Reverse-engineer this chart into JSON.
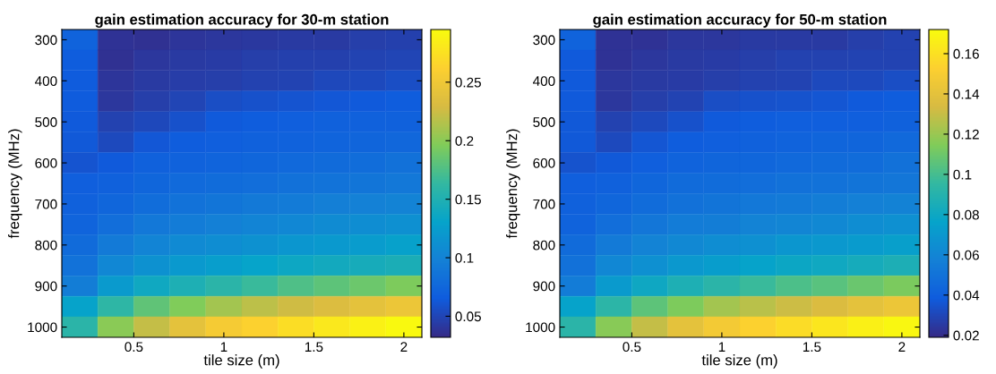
{
  "chart_data": [
    {
      "type": "heatmap",
      "title": "gain estimation accuracy for 30-m station",
      "xlabel": "tile size (m)",
      "ylabel": "frequency (MHz)",
      "x": [
        0.2,
        0.4,
        0.6,
        0.8,
        1.0,
        1.2,
        1.4,
        1.6,
        1.8,
        2.0
      ],
      "y": [
        300,
        350,
        400,
        450,
        500,
        550,
        600,
        650,
        700,
        750,
        800,
        850,
        900,
        950,
        1000
      ],
      "xlim": [
        0.1,
        2.1
      ],
      "ylim": [
        1025,
        275
      ],
      "xticks": [
        0.5,
        1,
        1.5,
        2
      ],
      "yticks": [
        300,
        400,
        500,
        600,
        700,
        800,
        900,
        1000
      ],
      "clim": [
        0.032,
        0.295
      ],
      "cticks": [
        0.05,
        0.1,
        0.15,
        0.2,
        0.25
      ],
      "cells": [
        [
          0.072,
          0.038,
          0.037,
          0.04,
          0.041,
          0.042,
          0.043,
          0.043,
          0.046,
          0.047
        ],
        [
          0.066,
          0.037,
          0.041,
          0.043,
          0.044,
          0.046,
          0.047,
          0.047,
          0.049,
          0.05
        ],
        [
          0.065,
          0.04,
          0.043,
          0.045,
          0.046,
          0.048,
          0.049,
          0.052,
          0.053,
          0.056
        ],
        [
          0.065,
          0.041,
          0.046,
          0.05,
          0.056,
          0.058,
          0.06,
          0.062,
          0.064,
          0.066
        ],
        [
          0.064,
          0.048,
          0.052,
          0.058,
          0.064,
          0.066,
          0.068,
          0.069,
          0.069,
          0.07
        ],
        [
          0.063,
          0.053,
          0.062,
          0.066,
          0.068,
          0.07,
          0.071,
          0.073,
          0.074,
          0.076
        ],
        [
          0.06,
          0.064,
          0.069,
          0.071,
          0.073,
          0.075,
          0.077,
          0.079,
          0.081,
          0.084
        ],
        [
          0.068,
          0.07,
          0.075,
          0.078,
          0.08,
          0.082,
          0.084,
          0.086,
          0.088,
          0.09
        ],
        [
          0.07,
          0.075,
          0.081,
          0.085,
          0.088,
          0.091,
          0.093,
          0.096,
          0.098,
          0.1
        ],
        [
          0.073,
          0.082,
          0.09,
          0.094,
          0.097,
          0.101,
          0.104,
          0.107,
          0.11,
          0.113
        ],
        [
          0.079,
          0.092,
          0.101,
          0.106,
          0.11,
          0.114,
          0.118,
          0.121,
          0.124,
          0.128
        ],
        [
          0.085,
          0.104,
          0.114,
          0.121,
          0.126,
          0.131,
          0.136,
          0.14,
          0.143,
          0.147
        ],
        [
          0.095,
          0.122,
          0.138,
          0.149,
          0.158,
          0.166,
          0.175,
          0.181,
          0.188,
          0.195
        ],
        [
          0.13,
          0.16,
          0.182,
          0.196,
          0.209,
          0.218,
          0.226,
          0.233,
          0.24,
          0.247
        ],
        [
          0.158,
          0.2,
          0.222,
          0.24,
          0.255,
          0.263,
          0.272,
          0.28,
          0.287,
          0.293
        ]
      ]
    },
    {
      "type": "heatmap",
      "title": "gain estimation accuracy for 50-m station",
      "xlabel": "tile size (m)",
      "ylabel": "frequency (MHz)",
      "x": [
        0.2,
        0.4,
        0.6,
        0.8,
        1.0,
        1.2,
        1.4,
        1.6,
        1.8,
        2.0
      ],
      "y": [
        300,
        350,
        400,
        450,
        500,
        550,
        600,
        650,
        700,
        750,
        800,
        850,
        900,
        950,
        1000
      ],
      "xlim": [
        0.1,
        2.1
      ],
      "ylim": [
        1025,
        275
      ],
      "xticks": [
        0.5,
        1,
        1.5,
        2
      ],
      "yticks": [
        300,
        400,
        500,
        600,
        700,
        800,
        900,
        1000
      ],
      "clim": [
        0.019,
        0.172
      ],
      "cticks": [
        0.02,
        0.04,
        0.06,
        0.08,
        0.1,
        0.12,
        0.14,
        0.16
      ],
      "cells": [
        [
          0.042,
          0.022,
          0.022,
          0.024,
          0.024,
          0.025,
          0.025,
          0.025,
          0.027,
          0.028
        ],
        [
          0.038,
          0.022,
          0.024,
          0.025,
          0.026,
          0.027,
          0.028,
          0.028,
          0.029,
          0.029
        ],
        [
          0.038,
          0.024,
          0.025,
          0.026,
          0.027,
          0.028,
          0.029,
          0.031,
          0.031,
          0.033
        ],
        [
          0.038,
          0.024,
          0.027,
          0.029,
          0.033,
          0.034,
          0.035,
          0.036,
          0.038,
          0.039
        ],
        [
          0.037,
          0.028,
          0.031,
          0.034,
          0.038,
          0.039,
          0.04,
          0.04,
          0.04,
          0.041
        ],
        [
          0.037,
          0.031,
          0.036,
          0.039,
          0.04,
          0.041,
          0.042,
          0.043,
          0.043,
          0.045
        ],
        [
          0.035,
          0.037,
          0.04,
          0.042,
          0.043,
          0.044,
          0.045,
          0.046,
          0.047,
          0.049
        ],
        [
          0.04,
          0.041,
          0.044,
          0.046,
          0.047,
          0.048,
          0.049,
          0.05,
          0.051,
          0.052
        ],
        [
          0.041,
          0.044,
          0.047,
          0.049,
          0.051,
          0.053,
          0.054,
          0.056,
          0.057,
          0.058
        ],
        [
          0.042,
          0.048,
          0.052,
          0.055,
          0.056,
          0.059,
          0.06,
          0.062,
          0.064,
          0.066
        ],
        [
          0.046,
          0.054,
          0.059,
          0.062,
          0.064,
          0.066,
          0.069,
          0.07,
          0.072,
          0.074
        ],
        [
          0.049,
          0.061,
          0.066,
          0.07,
          0.073,
          0.076,
          0.079,
          0.081,
          0.083,
          0.086
        ],
        [
          0.055,
          0.071,
          0.08,
          0.087,
          0.092,
          0.097,
          0.102,
          0.105,
          0.109,
          0.113
        ],
        [
          0.076,
          0.093,
          0.106,
          0.114,
          0.122,
          0.127,
          0.131,
          0.135,
          0.14,
          0.144
        ],
        [
          0.092,
          0.116,
          0.129,
          0.14,
          0.148,
          0.153,
          0.158,
          0.163,
          0.167,
          0.17
        ]
      ]
    }
  ]
}
